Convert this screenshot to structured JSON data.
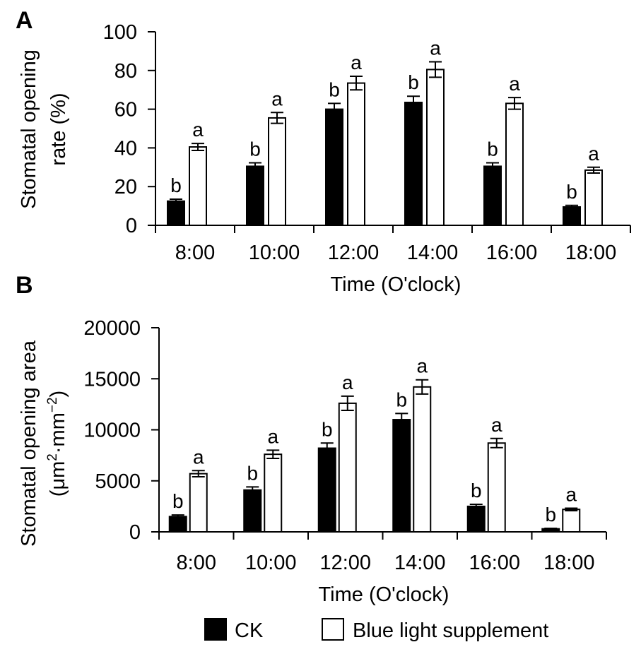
{
  "chart_data": [
    {
      "panel_label": "A",
      "type": "bar",
      "categories": [
        "8:00",
        "10:00",
        "12:00",
        "14:00",
        "16:00",
        "18:00"
      ],
      "series": [
        {
          "name": "CK",
          "values": [
            12.5,
            30.5,
            60,
            63.5,
            30.5,
            9.5
          ],
          "errors": [
            1,
            1.8,
            3,
            3.2,
            1.8,
            0.8
          ],
          "letters": [
            "b",
            "b",
            "b",
            "b",
            "b",
            "b"
          ],
          "color": "#000000"
        },
        {
          "name": "Blue light supplement",
          "values": [
            40.5,
            55.5,
            73.5,
            80.5,
            63,
            28.5
          ],
          "errors": [
            1.8,
            2.8,
            3.5,
            4,
            3,
            1.5
          ],
          "letters": [
            "a",
            "a",
            "a",
            "a",
            "a",
            "a"
          ],
          "color": "#ffffff"
        }
      ],
      "ylabel_lines": [
        "Stomatal opening",
        "rate (%)"
      ],
      "xlabel": "Time (O'clock)",
      "ylim": [
        0,
        100
      ],
      "yticks": [
        0,
        20,
        40,
        60,
        80,
        100
      ],
      "grid": false
    },
    {
      "panel_label": "B",
      "type": "bar",
      "categories": [
        "8:00",
        "10:00",
        "12:00",
        "14:00",
        "16:00",
        "18:00"
      ],
      "series": [
        {
          "name": "CK",
          "values": [
            1500,
            4100,
            8200,
            11000,
            2500,
            300
          ],
          "errors": [
            150,
            300,
            500,
            600,
            200,
            50
          ],
          "letters": [
            "b",
            "b",
            "b",
            "b",
            "b",
            "b"
          ],
          "color": "#000000"
        },
        {
          "name": "Blue light supplement",
          "values": [
            5700,
            7600,
            12600,
            14200,
            8700,
            2200
          ],
          "errors": [
            300,
            400,
            700,
            700,
            450,
            120
          ],
          "letters": [
            "a",
            "a",
            "a",
            "a",
            "a",
            "a"
          ],
          "color": "#ffffff"
        }
      ],
      "ylabel_line1": "Stomatal opening area",
      "ylabel_line2": {
        "pre": "(μm",
        "sup1": "2",
        "mid": "·mm",
        "sup2": "−2",
        "post": ")"
      },
      "xlabel": "Time (O'clock)",
      "ylim": [
        0,
        20000
      ],
      "yticks": [
        0,
        5000,
        10000,
        15000,
        20000
      ],
      "grid": false
    }
  ],
  "legend": {
    "placement": "bottom-center",
    "items": [
      {
        "label": "CK",
        "color": "#000000"
      },
      {
        "label": "Blue light supplement",
        "color": "#ffffff"
      }
    ]
  }
}
